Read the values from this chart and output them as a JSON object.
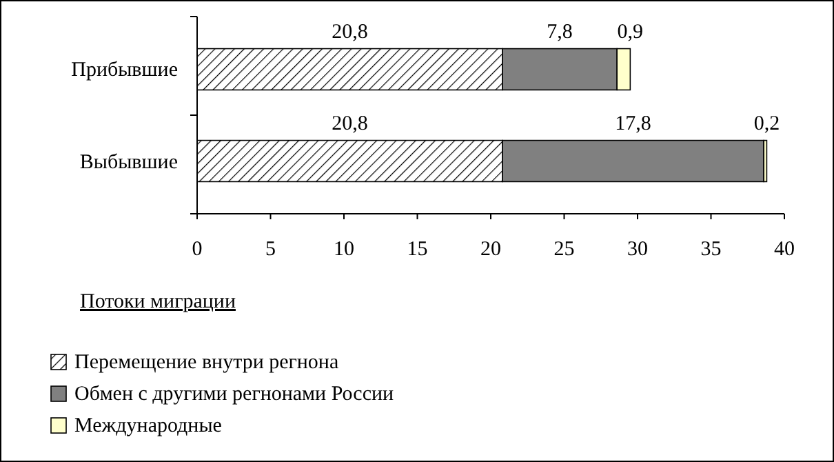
{
  "chart_data": {
    "type": "bar",
    "orientation": "horizontal",
    "stacked": true,
    "categories": [
      "Прибывшие",
      "Выбывшие"
    ],
    "xlabel": "Потоки миграции",
    "xlim": [
      0,
      40
    ],
    "xticks": [
      0,
      5,
      10,
      15,
      20,
      25,
      30,
      35,
      40
    ],
    "legend": "bottom",
    "grid": false,
    "series": [
      {
        "name": "Перемещение внутри регнона",
        "color": "#000000",
        "values": [
          20.8,
          20.8
        ],
        "value_labels": [
          "20,8",
          "20,8"
        ]
      },
      {
        "name": "Обмен с другими регнонами России",
        "color": "#808080",
        "values": [
          7.8,
          17.8
        ],
        "value_labels": [
          "7,8",
          "17,8"
        ]
      },
      {
        "name": "Международные",
        "color": "#ffffcc",
        "values": [
          0.9,
          0.2
        ],
        "value_labels": [
          "0,9",
          "0,2"
        ]
      }
    ]
  }
}
